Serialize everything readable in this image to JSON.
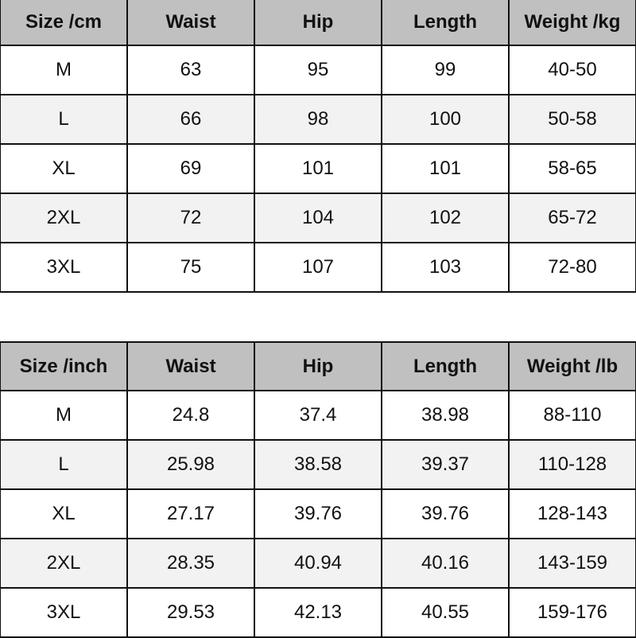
{
  "tables": [
    {
      "headers": [
        "Size /cm",
        "Waist",
        "Hip",
        "Length",
        "Weight /kg"
      ],
      "rows": [
        [
          "M",
          "63",
          "95",
          "99",
          "40-50"
        ],
        [
          "L",
          "66",
          "98",
          "100",
          "50-58"
        ],
        [
          "XL",
          "69",
          "101",
          "101",
          "58-65"
        ],
        [
          "2XL",
          "72",
          "104",
          "102",
          "65-72"
        ],
        [
          "3XL",
          "75",
          "107",
          "103",
          "72-80"
        ]
      ]
    },
    {
      "headers": [
        "Size /inch",
        "Waist",
        "Hip",
        "Length",
        "Weight /lb"
      ],
      "rows": [
        [
          "M",
          "24.8",
          "37.4",
          "38.98",
          "88-110"
        ],
        [
          "L",
          "25.98",
          "38.58",
          "39.37",
          "110-128"
        ],
        [
          "XL",
          "27.17",
          "39.76",
          "39.76",
          "128-143"
        ],
        [
          "2XL",
          "28.35",
          "40.94",
          "40.16",
          "143-159"
        ],
        [
          "3XL",
          "29.53",
          "42.13",
          "40.55",
          "159-176"
        ]
      ]
    }
  ],
  "colors": {
    "header_bg": "#c0c0c0",
    "alt_row_bg": "#f2f2f2",
    "border": "#111111"
  }
}
